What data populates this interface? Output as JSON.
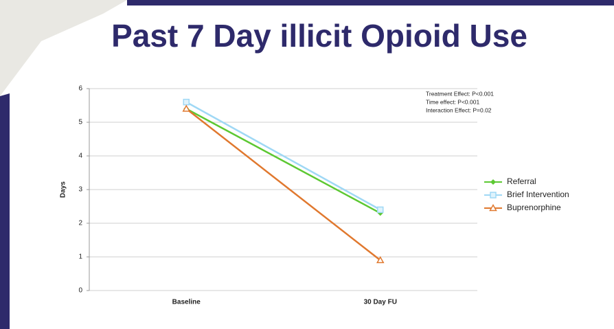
{
  "chart_data": {
    "type": "line",
    "title": "Past 7 Day illicit Opioid Use",
    "y_label": "Days",
    "annotations": [
      "Treatment Effect: P<0.001",
      "Time effect:  P<0.001",
      "Interaction Effect: P=0.02"
    ],
    "categories": [
      "Baseline",
      "30 Day FU"
    ],
    "series": [
      {
        "name": "Referral",
        "color": "#5cc832",
        "marker": "diamond",
        "values": [
          5.4,
          2.3
        ]
      },
      {
        "name": "Brief Intervention",
        "color": "#9fd8f5",
        "marker": "square",
        "values": [
          5.6,
          2.4
        ]
      },
      {
        "name": "Buprenorphine",
        "color": "#e0782e",
        "marker": "triangle",
        "values": [
          5.4,
          0.9
        ]
      }
    ],
    "ylim": [
      0,
      6
    ],
    "yticks": [
      0,
      1,
      2,
      3,
      4,
      5,
      6
    ],
    "grid": true,
    "legend": "right"
  }
}
